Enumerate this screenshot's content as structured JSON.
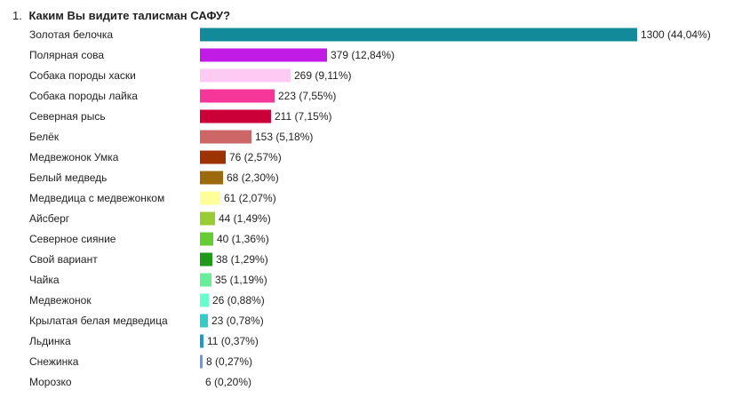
{
  "question": {
    "number": "1.",
    "text": "Каким Вы видите талисман САФУ?"
  },
  "chart_data": {
    "type": "bar",
    "orientation": "horizontal",
    "title": "Каким Вы видите талисман САФУ?",
    "categories": [
      "Золотая белочка",
      "Полярная сова",
      "Собака породы хаски",
      "Собака породы лайка",
      "Северная рысь",
      "Белёк",
      "Медвежонок Умка",
      "Белый медведь",
      "Медведица с медвежонком",
      "Айсберг",
      "Северное сияние",
      "Свой вариант",
      "Чайка",
      "Медвежонок",
      "Крылатая белая медведица",
      "Льдинка",
      "Снежинка",
      "Морозко"
    ],
    "values": [
      1300,
      379,
      269,
      223,
      211,
      153,
      76,
      68,
      61,
      44,
      40,
      38,
      35,
      26,
      23,
      11,
      8,
      6
    ],
    "value_labels": [
      "1300 (44,04%)",
      "379 (12,84%)",
      "269 (9,11%)",
      "223 (7,55%)",
      "211 (7,15%)",
      "153 (5,18%)",
      "76 (2,57%)",
      "68 (2,30%)",
      "61 (2,07%)",
      "44 (1,49%)",
      "40 (1,36%)",
      "38 (1,29%)",
      "35 (1,19%)",
      "26 (0,88%)",
      "23 (0,78%)",
      "11 (0,37%)",
      "8 (0,27%)",
      "6 (0,20%)"
    ],
    "colors": [
      "#138a99",
      "#c11ce6",
      "#fccaf2",
      "#f5379a",
      "#cc0039",
      "#cd6666",
      "#9e3302",
      "#9c6a0d",
      "#ffff99",
      "#99cc33",
      "#66cc33",
      "#1f9918",
      "#66ee99",
      "#66ffcc",
      "#33cccc",
      "#1f99cc",
      "#6699ee",
      "#ffffff"
    ],
    "xlim": [
      0,
      1300
    ],
    "grid": false,
    "legend": "none"
  }
}
